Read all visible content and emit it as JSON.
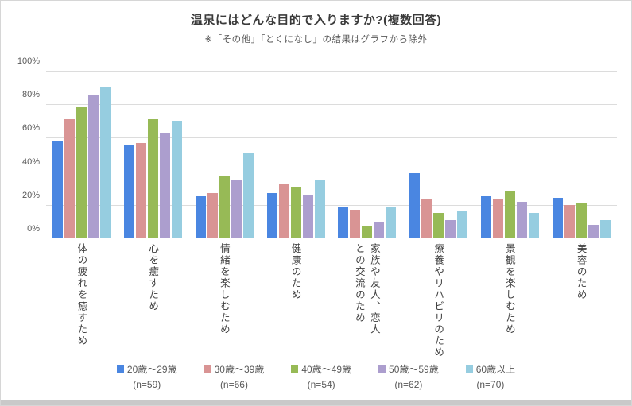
{
  "page": {
    "background": "#ffffff",
    "footer_strip_color": "#c9c9c9"
  },
  "chart_data": {
    "type": "bar",
    "title": "温泉にはどんな目的で入りますか?(複数回答)",
    "subtitle": "※「その他」「とくになし」の結果はグラフから除外",
    "xlabel": "",
    "ylabel": "",
    "ylim": [
      0,
      100
    ],
    "yticks_percent": [
      100,
      80,
      60,
      40,
      20,
      0
    ],
    "grid": true,
    "legend_position": "bottom",
    "categories": [
      "体の疲れを癒すため",
      "心を癒すため",
      "情緒を楽しむため",
      "健康のため",
      "家族や友人、恋人\nとの交流のため",
      "療養やリハビリのため",
      "景観を楽しむため",
      "美容のため"
    ],
    "series": [
      {
        "name": "20歳〜29歳",
        "n_label": "(n=59)",
        "color": "#4a86e1",
        "values": [
          58,
          56,
          25,
          27,
          19,
          39,
          25,
          24
        ]
      },
      {
        "name": "30歳〜39歳",
        "n_label": "(n=66)",
        "color": "#d99494",
        "values": [
          71,
          57,
          27,
          32,
          17,
          23,
          23,
          20
        ]
      },
      {
        "name": "40歳〜49歳",
        "n_label": "(n=54)",
        "color": "#97ba56",
        "values": [
          78,
          71,
          37,
          31,
          7,
          15,
          28,
          21
        ]
      },
      {
        "name": "50歳〜59歳",
        "n_label": "(n=62)",
        "color": "#ac9ece",
        "values": [
          86,
          63,
          35,
          26,
          10,
          11,
          22,
          8
        ]
      },
      {
        "name": "60歳以上",
        "n_label": "(n=70)",
        "color": "#96cde0",
        "values": [
          90,
          70,
          51,
          35,
          19,
          16,
          15,
          11
        ]
      }
    ]
  }
}
